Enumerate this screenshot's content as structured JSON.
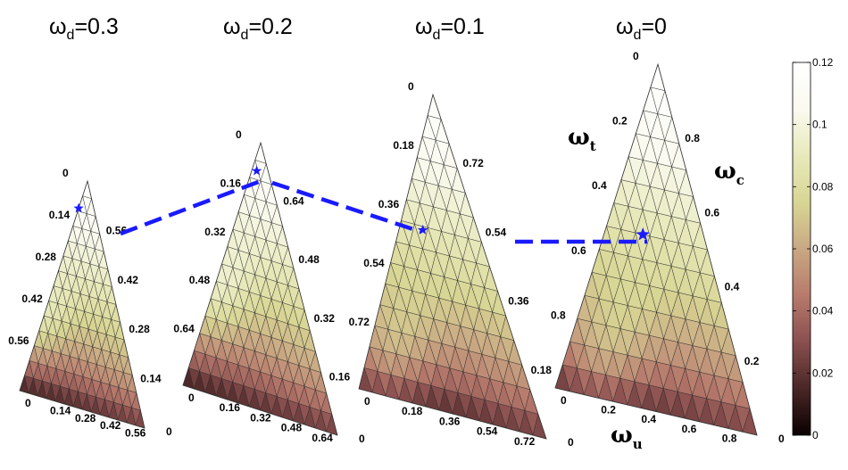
{
  "chart_data": {
    "type": "ternary-heatmap",
    "colorbar": {
      "min": 0,
      "max": 0.12,
      "ticks": [
        "0",
        "0.02",
        "0.04",
        "0.06",
        "0.08",
        "0.1",
        "0.12"
      ]
    },
    "axis_labels": {
      "t": "ω",
      "t_sub": "t",
      "c": "ω",
      "c_sub": "c",
      "u": "ω",
      "u_sub": "u"
    },
    "panels": [
      {
        "title": "ωd=0.3",
        "title_main": "ω",
        "title_sub": "d",
        "title_val": "=0.3",
        "scale": 0.7,
        "left_ticks": [
          "0",
          "0.14",
          "0.28",
          "0.42",
          "0.56"
        ],
        "right_ticks": [
          "0.56",
          "0.42",
          "0.28",
          "0.14"
        ],
        "bottom_ticks": [
          "0",
          "0.14",
          "0.28",
          "0.42",
          "0.56"
        ],
        "corner_label": "0",
        "optimum": {
          "u": 0.0,
          "t": 0.13
        }
      },
      {
        "title": "ωd=0.2",
        "title_main": "ω",
        "title_sub": "d",
        "title_val": "=0.2",
        "scale": 0.8,
        "left_ticks": [
          "0",
          "0.16",
          "0.32",
          "0.48",
          "0.64"
        ],
        "right_ticks": [
          "0.64",
          "0.48",
          "0.32",
          "0.16"
        ],
        "bottom_ticks": [
          "0",
          "0.16",
          "0.32",
          "0.48",
          "0.64"
        ],
        "corner_label": "0",
        "optimum": {
          "u": 0.03,
          "t": 0.08
        }
      },
      {
        "title": "ωd=0.1",
        "title_main": "ω",
        "title_sub": "d",
        "title_val": "=0.1",
        "scale": 0.9,
        "left_ticks": [
          "0",
          "0.18",
          "0.36",
          "0.54",
          "0.72"
        ],
        "right_ticks": [
          "0.72",
          "0.54",
          "0.36",
          "0.18"
        ],
        "bottom_ticks": [
          "0",
          "0.18",
          "0.36",
          "0.54",
          "0.72"
        ],
        "corner_label": "0",
        "optimum": {
          "u": 0.12,
          "t": 0.32
        }
      },
      {
        "title": "ωd=0",
        "title_main": "ω",
        "title_sub": "d",
        "title_val": "=0",
        "scale": 1.0,
        "left_ticks": [
          "0",
          "0.2",
          "0.4",
          "0.6",
          "0.8"
        ],
        "right_ticks": [
          "0.8",
          "0.6",
          "0.4",
          "0.2"
        ],
        "bottom_ticks": [
          "0",
          "0.2",
          "0.4",
          "0.6",
          "0.8"
        ],
        "corner_label": "0",
        "optimum": {
          "u": 0.18,
          "t": 0.32
        }
      }
    ],
    "path_color": "#1a1aff",
    "colormap": [
      "#0a0000",
      "#4a2626",
      "#8a4f4f",
      "#b77a6c",
      "#c9a883",
      "#d8d694",
      "#e8e9bb",
      "#fafaf0",
      "#ffffff"
    ]
  }
}
